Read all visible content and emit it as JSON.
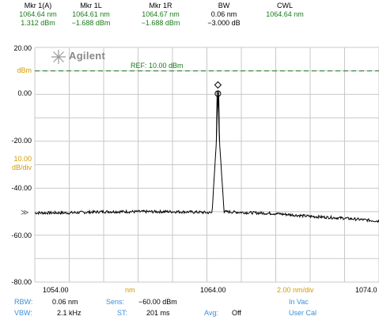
{
  "markers": [
    {
      "header": "Mkr 1(A)",
      "line1": "1064.64 nm",
      "line2": "1.312 dBm"
    },
    {
      "header": "Mkr 1L",
      "line1": "1064.61 nm",
      "line2": "−1.688 dBm"
    },
    {
      "header": "Mkr 1R",
      "line1": "1064.67 nm",
      "line2": "−1.688 dBm"
    },
    {
      "header": "BW",
      "line1": "0.06 nm",
      "line2": "−3.000 dB"
    },
    {
      "header": "CWL",
      "line1": "1064.64 nm",
      "line2": ""
    }
  ],
  "brand": "Agilent",
  "ref_label": "REF: 10.00 dBm",
  "y_axis": {
    "top": "20.00",
    "unit": "dBm",
    "ticks": [
      "0.00",
      "-20.00",
      "-40.00",
      "-60.00",
      "-80.00"
    ],
    "scale": "10.00",
    "scale_unit": "dB/div"
  },
  "x_axis": {
    "left": "1054.00",
    "unit": "nm",
    "center": "1064.00",
    "scale": "2.00 nm/div",
    "right": "1074.0"
  },
  "footer": {
    "rbw_label": "RBW:",
    "rbw": "0.06 nm",
    "sens_label": "Sens:",
    "sens": "−60.00 dBm",
    "medium": "In Vac",
    "vbw_label": "VBW:",
    "vbw": "2.1 kHz",
    "st_label": "ST:",
    "st": "201 ms",
    "avg_label": "Avg:",
    "avg": "Off",
    "cal": "User Cal"
  },
  "colors": {
    "green": "#1a7a1a",
    "orange": "#d49a00",
    "blue": "#3a8fd8",
    "grid": "#c8c8c8"
  },
  "chart_data": {
    "type": "line",
    "xlim": [
      1054.0,
      1074.0
    ],
    "ylim": [
      -80.0,
      20.0
    ],
    "ref_level": 10.0,
    "marker": {
      "x": 1064.64,
      "y": 1.312
    },
    "series": [
      {
        "x": [
          1054.0,
          1056.0,
          1058.0,
          1060.0,
          1062.0,
          1063.5,
          1064.3,
          1064.55,
          1064.64,
          1064.73,
          1065.0,
          1066.0,
          1068.0,
          1070.0,
          1072.0,
          1074.0
        ],
        "y": [
          -50.5,
          -50.5,
          -50.0,
          -50.0,
          -50.0,
          -50.2,
          -50.5,
          -20.0,
          1.312,
          -20.0,
          -50.0,
          -50.3,
          -50.8,
          -52.0,
          -52.8,
          -54.0
        ]
      }
    ]
  }
}
